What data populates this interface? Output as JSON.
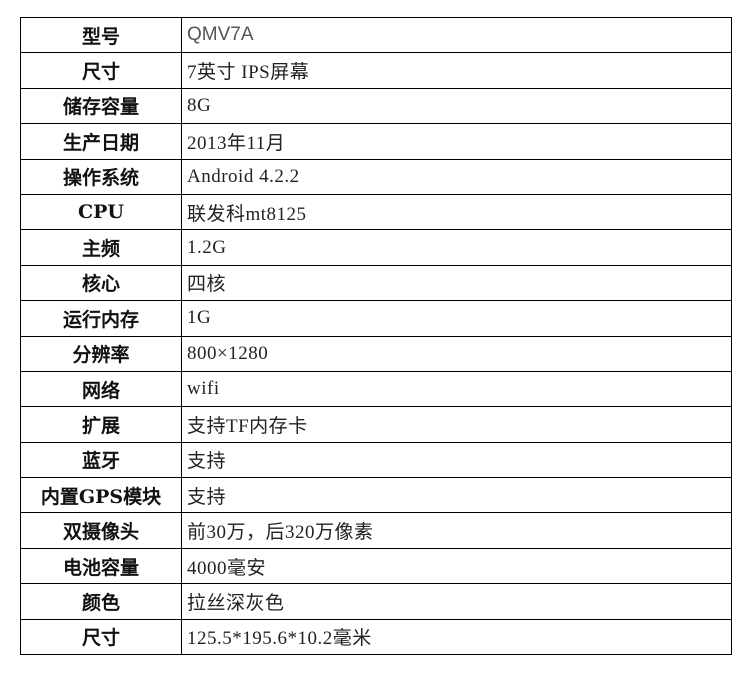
{
  "rows": [
    {
      "label": "型号",
      "value": "QMV7A"
    },
    {
      "label": "尺寸",
      "value": "7英寸 IPS屏幕"
    },
    {
      "label": "储存容量",
      "value": "8G"
    },
    {
      "label": "生产日期",
      "value": "2013年11月"
    },
    {
      "label": "操作系统",
      "value": "Android 4.2.2"
    },
    {
      "label": "CPU",
      "value": "联发科mt8125"
    },
    {
      "label": "主频",
      "value": "1.2G"
    },
    {
      "label": "核心",
      "value": "四核"
    },
    {
      "label": "运行内存",
      "value": "1G"
    },
    {
      "label": "分辨率",
      "value": "800×1280"
    },
    {
      "label": "网络",
      "value": "wifi"
    },
    {
      "label": "扩展",
      "value": "支持TF内存卡"
    },
    {
      "label": "蓝牙",
      "value": "支持"
    },
    {
      "label": "内置GPS模块",
      "value": "支持"
    },
    {
      "label": "双摄像头",
      "value": "前30万，后320万像素"
    },
    {
      "label": "电池容量",
      "value": "4000毫安"
    },
    {
      "label": "颜色",
      "value": "拉丝深灰色"
    },
    {
      "label": "尺寸",
      "value": "125.5*195.6*10.2毫米"
    }
  ]
}
